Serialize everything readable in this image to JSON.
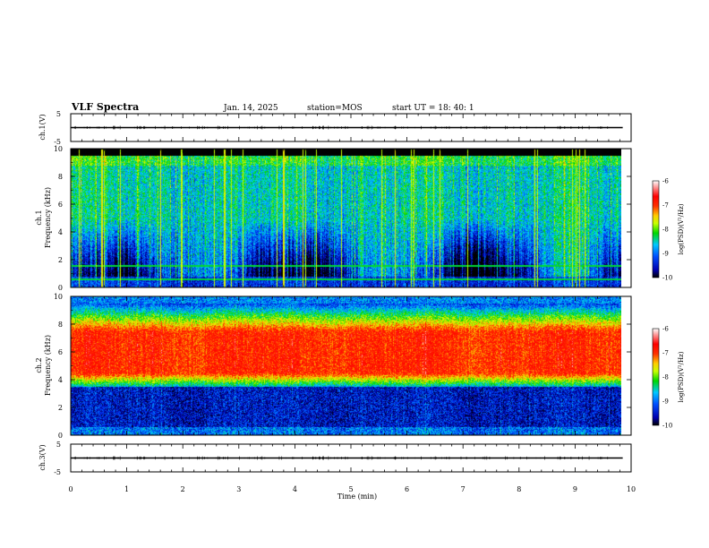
{
  "header": {
    "title": "VLF Spectra",
    "date": "Jan. 14, 2025",
    "station": "station=MOS",
    "start": "start UT =  18: 40: 1"
  },
  "chart_data": [
    {
      "type": "line",
      "panel": "ch1-waveform",
      "ylabel": "ch.1(V)",
      "ylim": [
        -5,
        5
      ],
      "yticks": [
        "5",
        "-5"
      ],
      "xlim": [
        0,
        10
      ],
      "x": [
        0,
        9.85
      ],
      "values": [
        0,
        0
      ]
    },
    {
      "type": "heatmap",
      "panel": "ch1-spectrogram",
      "ylabel": "ch.1\nFrequency (kHz)",
      "ylim": [
        0,
        10
      ],
      "yticks": [
        "0",
        "2",
        "4",
        "6",
        "8",
        "10"
      ],
      "xlim": [
        0,
        10
      ],
      "data_x_range": [
        0,
        9.85
      ],
      "color_levels": [
        "-10",
        "-9",
        "-8",
        "-7",
        "-6"
      ],
      "colorbar_label": "log(PSD)(V²/Hz)",
      "colormap": [
        "#000000",
        "#0000c8",
        "#0078ff",
        "#00e0e0",
        "#00d400",
        "#ffff00",
        "#ff8000",
        "#ff0000",
        "#ffffff"
      ],
      "features": {
        "background_level": -10.2,
        "broadband_level_2_to_9_kHz": -8.8,
        "upper_cutoff_kHz": 9.5,
        "horizontal_lines_kHz": [
          0.6,
          1.6
        ],
        "strong_impulse_times_min": [
          0.55,
          1.6,
          2.75,
          3.8,
          4.15,
          5.8,
          6.6,
          8.3,
          9.1
        ]
      }
    },
    {
      "type": "heatmap",
      "panel": "ch2-spectrogram",
      "ylabel": "ch.2\nFrequency (kHz)",
      "ylim": [
        0,
        10
      ],
      "yticks": [
        "0",
        "2",
        "4",
        "6",
        "8",
        "10"
      ],
      "xlim": [
        0,
        10
      ],
      "data_x_range": [
        0,
        9.85
      ],
      "color_levels": [
        "-10",
        "-9",
        "-8",
        "-7",
        "-6"
      ],
      "colorbar_label": "log(PSD)(V²/Hz)",
      "colormap": [
        "#000000",
        "#0000c8",
        "#0078ff",
        "#00e0e0",
        "#00d400",
        "#ffff00",
        "#ff8000",
        "#ff0000",
        "#ffffff"
      ],
      "features": {
        "peak_band_kHz": [
          4.5,
          7.5
        ],
        "peak_level": -7.0,
        "shoulder_band_kHz": [
          3.5,
          9.5
        ],
        "low_band_level_below_3_kHz": -9.8
      }
    },
    {
      "type": "line",
      "panel": "ch3-waveform",
      "ylabel": "ch.3(V)",
      "ylim": [
        -5,
        5
      ],
      "yticks": [
        "5",
        "-5"
      ],
      "xlim": [
        0,
        10
      ],
      "x": [
        0,
        9.85
      ],
      "values": [
        0,
        0
      ]
    }
  ],
  "xaxis": {
    "label": "Time (min)",
    "ticks": [
      "0",
      "1",
      "2",
      "3",
      "4",
      "5",
      "6",
      "7",
      "8",
      "9",
      "10"
    ]
  }
}
